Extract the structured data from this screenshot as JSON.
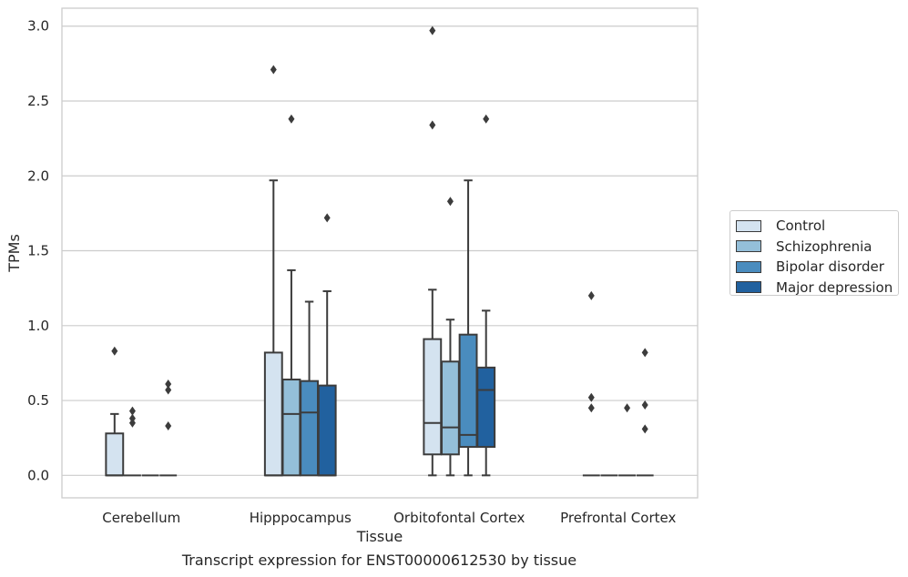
{
  "caption": "Transcript expression for ENST00000612530 by tissue",
  "chart_data": {
    "type": "box",
    "xlabel": "Tissue",
    "ylabel": "TPMs",
    "ylim": [
      -0.15,
      3.12
    ],
    "yticks": [
      0.0,
      0.5,
      1.0,
      1.5,
      2.0,
      2.5,
      3.0
    ],
    "ytick_labels": [
      "0.0",
      "0.5",
      "1.0",
      "1.5",
      "2.0",
      "2.5",
      "3.0"
    ],
    "grid": "horizontal",
    "legend_position": "right",
    "categories": [
      "Cerebellum",
      "Hipppocampus",
      "Orbitofontal Cortex",
      "Prefrontal Cortex"
    ],
    "series": [
      {
        "name": "Control",
        "color": "#d4e3f0",
        "boxes": [
          {
            "whislo": 0.0,
            "q1": 0.0,
            "med": 0.0,
            "q3": 0.28,
            "whishi": 0.41,
            "fliers": [
              0.83
            ]
          },
          {
            "whislo": 0.0,
            "q1": 0.0,
            "med": 0.0,
            "q3": 0.82,
            "whishi": 1.97,
            "fliers": [
              2.71
            ]
          },
          {
            "whislo": 0.0,
            "q1": 0.14,
            "med": 0.35,
            "q3": 0.91,
            "whishi": 1.24,
            "fliers": [
              2.34,
              2.97
            ]
          },
          {
            "whislo": 0.0,
            "q1": 0.0,
            "med": 0.0,
            "q3": 0.0,
            "whishi": 0.0,
            "fliers": [
              0.45,
              0.52,
              1.2
            ]
          }
        ]
      },
      {
        "name": "Schizophrenia",
        "color": "#94bfd9",
        "boxes": [
          {
            "whislo": 0.0,
            "q1": 0.0,
            "med": 0.0,
            "q3": 0.0,
            "whishi": 0.0,
            "fliers": [
              0.35,
              0.38,
              0.43
            ]
          },
          {
            "whislo": 0.0,
            "q1": 0.0,
            "med": 0.41,
            "q3": 0.64,
            "whishi": 1.37,
            "fliers": [
              2.38
            ]
          },
          {
            "whislo": 0.0,
            "q1": 0.14,
            "med": 0.32,
            "q3": 0.76,
            "whishi": 1.04,
            "fliers": [
              1.83
            ]
          },
          {
            "whislo": 0.0,
            "q1": 0.0,
            "med": 0.0,
            "q3": 0.0,
            "whishi": 0.0,
            "fliers": []
          }
        ]
      },
      {
        "name": "Bipolar disorder",
        "color": "#4a8cbe",
        "boxes": [
          {
            "whislo": 0.0,
            "q1": 0.0,
            "med": 0.0,
            "q3": 0.0,
            "whishi": 0.0,
            "fliers": []
          },
          {
            "whislo": 0.0,
            "q1": 0.0,
            "med": 0.42,
            "q3": 0.63,
            "whishi": 1.16,
            "fliers": []
          },
          {
            "whislo": 0.0,
            "q1": 0.19,
            "med": 0.27,
            "q3": 0.94,
            "whishi": 1.97,
            "fliers": []
          },
          {
            "whislo": 0.0,
            "q1": 0.0,
            "med": 0.0,
            "q3": 0.0,
            "whishi": 0.0,
            "fliers": [
              0.45
            ]
          }
        ]
      },
      {
        "name": "Major depression",
        "color": "#21619f",
        "boxes": [
          {
            "whislo": 0.0,
            "q1": 0.0,
            "med": 0.0,
            "q3": 0.0,
            "whishi": 0.0,
            "fliers": [
              0.33,
              0.57,
              0.61
            ]
          },
          {
            "whislo": 0.0,
            "q1": 0.0,
            "med": 0.0,
            "q3": 0.6,
            "whishi": 1.23,
            "fliers": [
              1.72
            ]
          },
          {
            "whislo": 0.0,
            "q1": 0.19,
            "med": 0.57,
            "q3": 0.72,
            "whishi": 1.1,
            "fliers": [
              2.38
            ]
          },
          {
            "whislo": 0.0,
            "q1": 0.0,
            "med": 0.0,
            "q3": 0.0,
            "whishi": 0.0,
            "fliers": [
              0.31,
              0.47,
              0.82
            ]
          }
        ]
      }
    ]
  }
}
